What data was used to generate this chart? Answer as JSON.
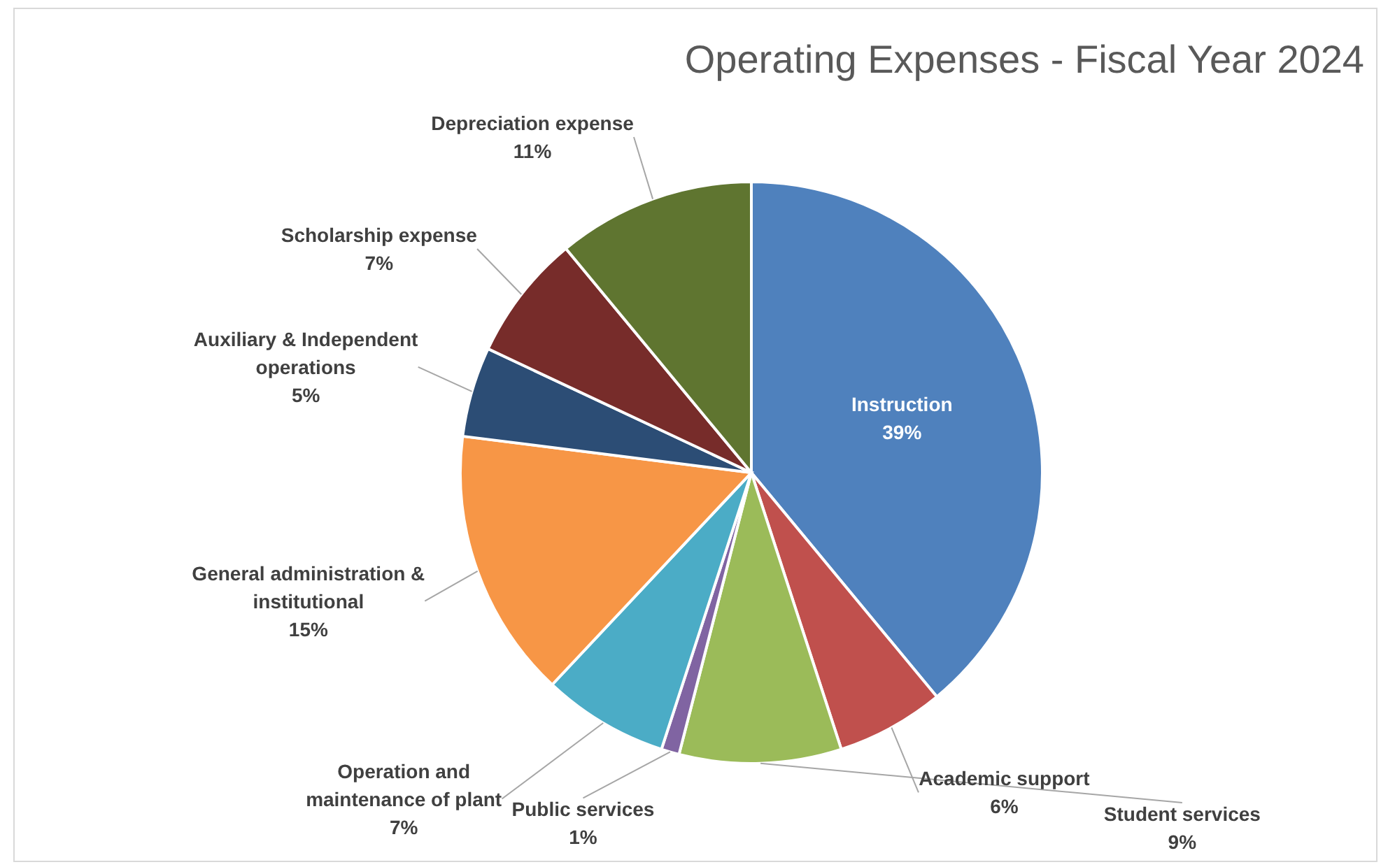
{
  "chart_data": {
    "type": "pie",
    "title": "Operating Expenses - Fiscal Year 2024",
    "categories": [
      "Instruction",
      "Academic support",
      "Student services",
      "Public services",
      "Operation and maintenance of plant",
      "General administration & institutional",
      "Auxiliary & Independent operations",
      "Scholarship expense",
      "Depreciation expense"
    ],
    "values": [
      39,
      6,
      9,
      1,
      7,
      15,
      5,
      7,
      11
    ],
    "colors": [
      "#4f81bd",
      "#c0504d",
      "#9bbb59",
      "#8064a2",
      "#4bacc6",
      "#f79646",
      "#2c4d75",
      "#772c2a",
      "#5f7530"
    ],
    "value_labels": [
      "39%",
      "6%",
      "9%",
      "1%",
      "7%",
      "15%",
      "5%",
      "7%",
      "11%"
    ]
  }
}
